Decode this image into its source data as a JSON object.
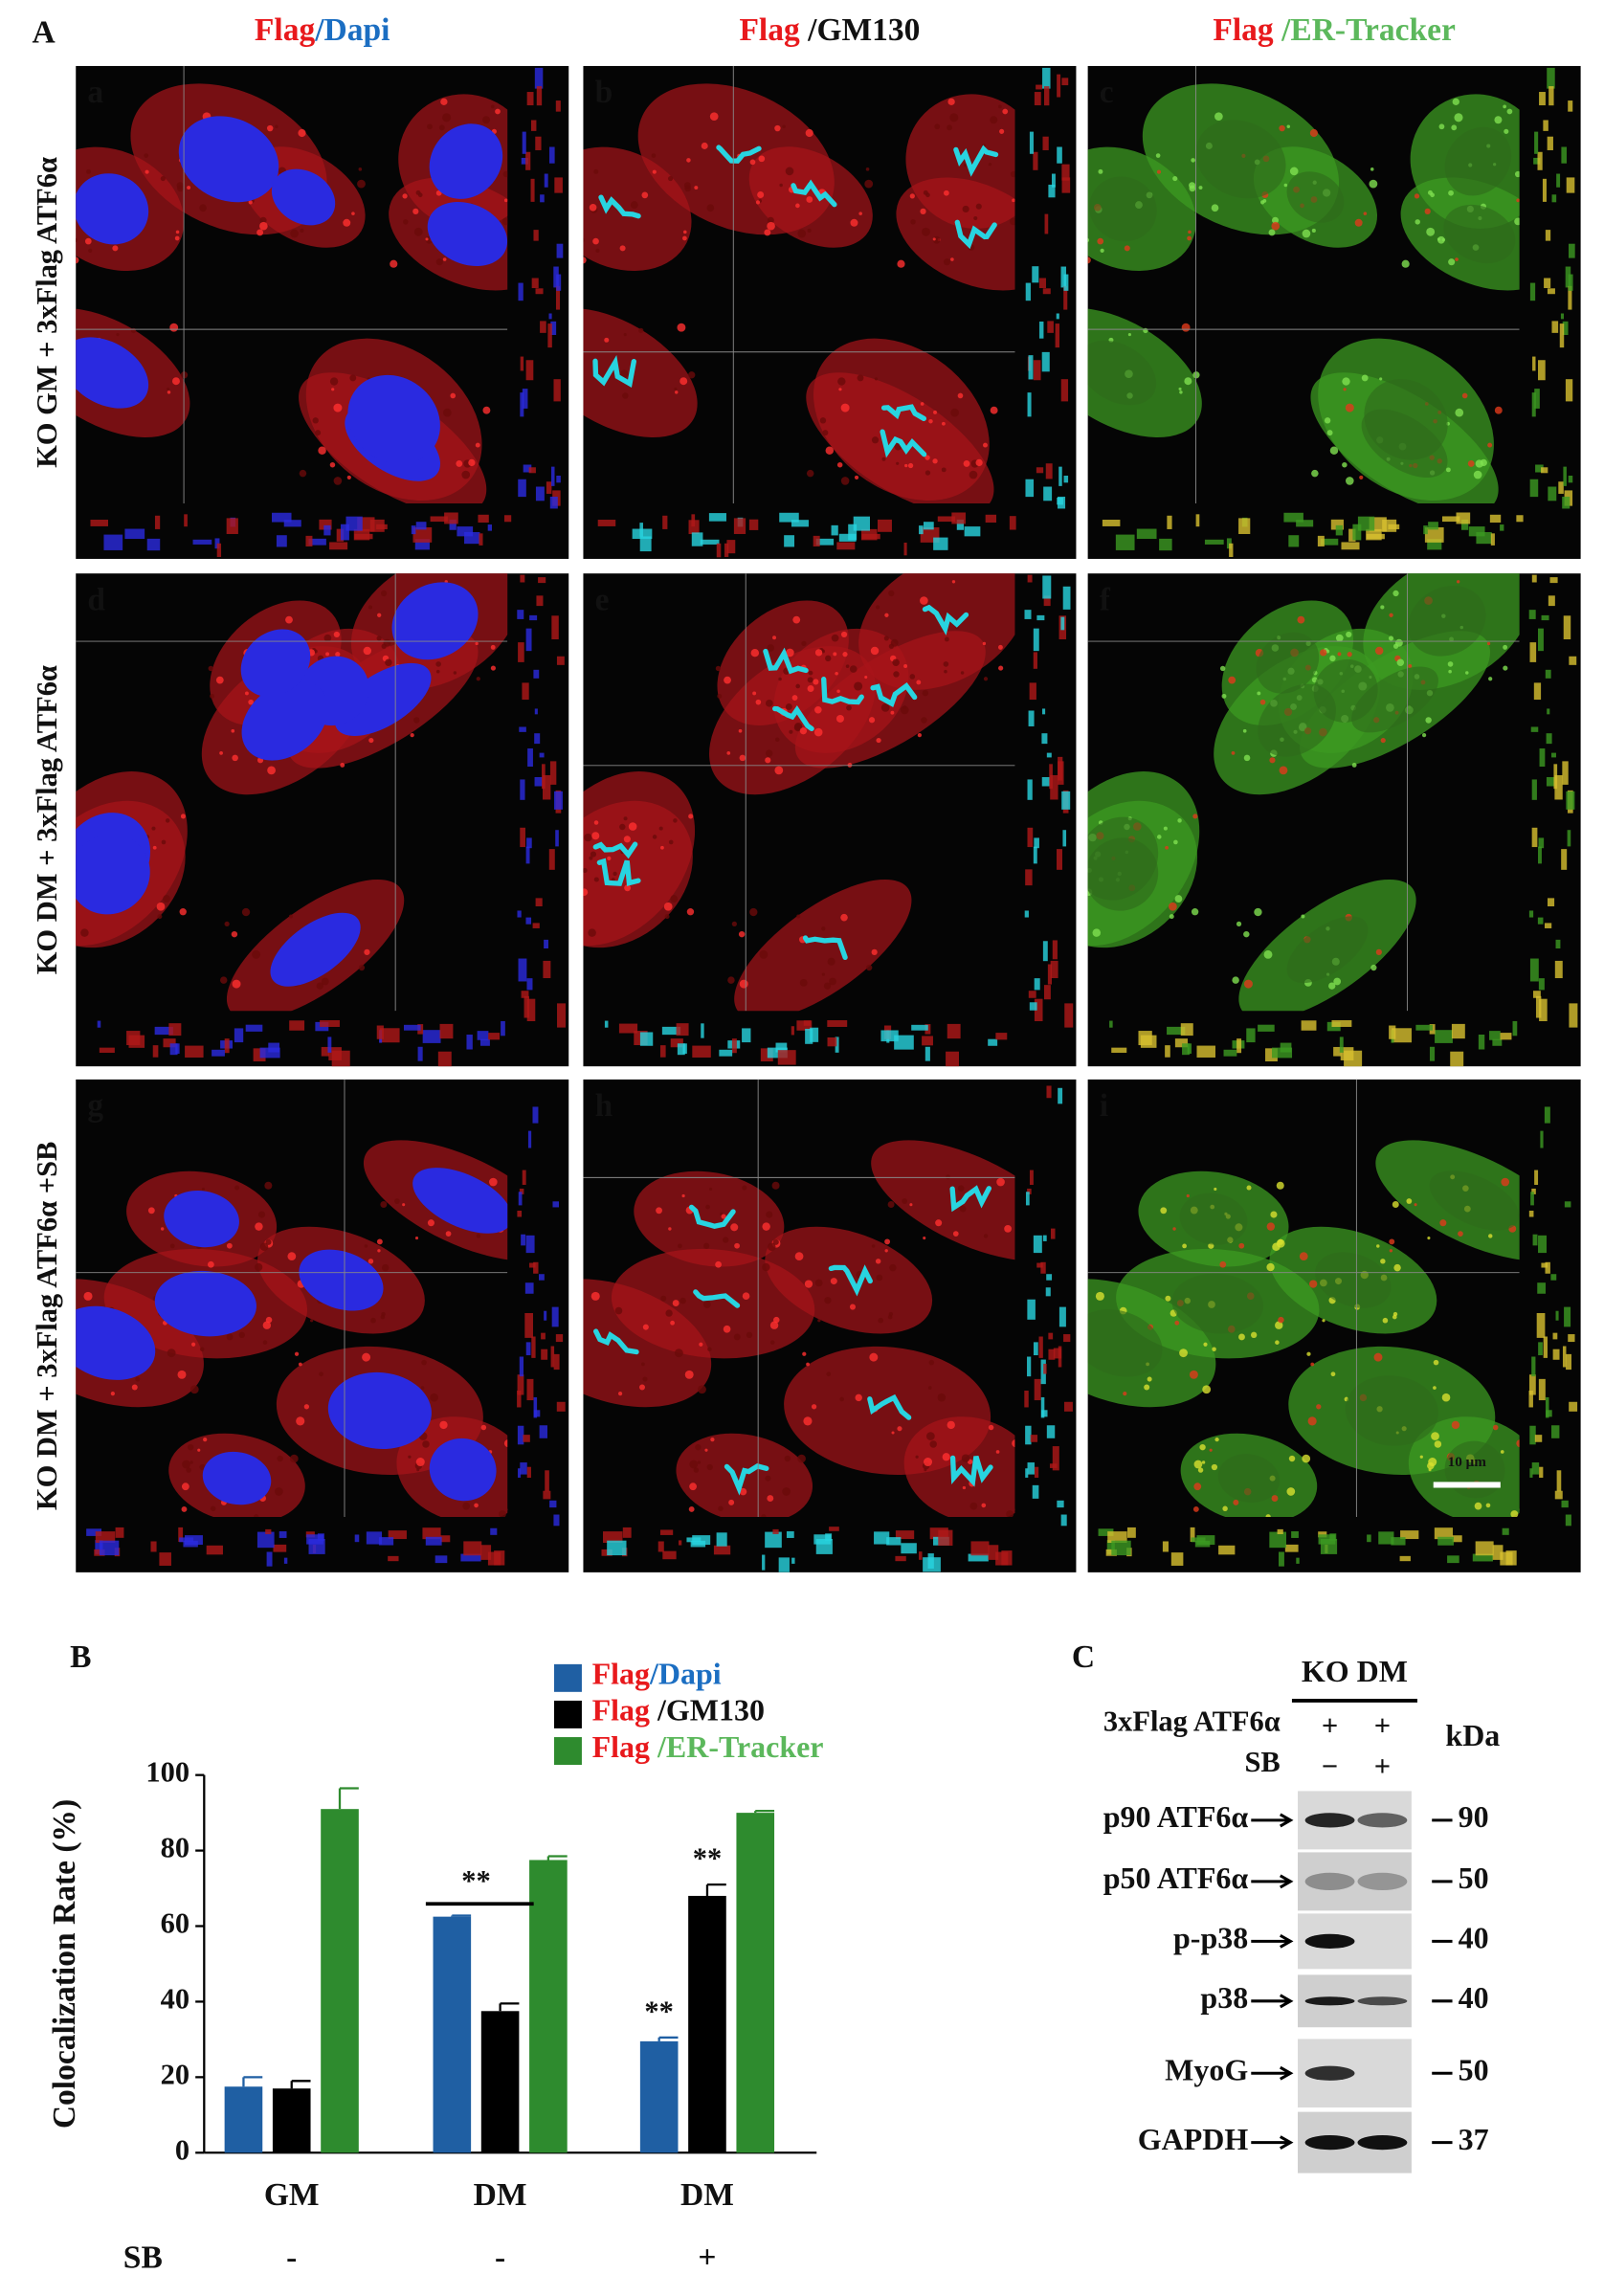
{
  "panel_a": {
    "label": "A",
    "columns": [
      [
        "Flag",
        "/Dapi"
      ],
      [
        "Flag",
        " /GM130"
      ],
      [
        "Flag",
        " /ER-Tracker"
      ]
    ],
    "rows": [
      "KO GM + 3xFlag ATF6α",
      "KO DM + 3xFlag ATF6α",
      "KO DM + 3xFlag ATF6α +SB"
    ],
    "panels": [
      "a",
      "b",
      "c",
      "d",
      "e",
      "f",
      "g",
      "h",
      "i"
    ],
    "scale_bar": "10 μm"
  },
  "chart_data": {
    "type": "bar",
    "label": "B",
    "ylabel": "Colocalization Rate (%)",
    "categories": [
      "GM",
      "DM",
      "DM"
    ],
    "row_label": "SB",
    "row_values": [
      "-",
      "-",
      "+"
    ],
    "series": [
      {
        "name": "Flag/Dapi",
        "color": "#1f5fa3",
        "values": [
          17.5,
          62.5,
          29.5
        ],
        "errors": [
          2.5,
          0.3,
          1
        ]
      },
      {
        "name": "Flag /GM130",
        "color": "#000000",
        "values": [
          17,
          37.5,
          68
        ],
        "errors": [
          2,
          2,
          3
        ]
      },
      {
        "name": "Flag /ER-Tracker",
        "color": "#2e8b2e",
        "values": [
          91,
          77.5,
          90
        ],
        "errors": [
          5.5,
          1,
          0.5
        ]
      }
    ],
    "annotations": [
      "**",
      "**",
      "**"
    ],
    "ylim": [
      0,
      100
    ],
    "yticks": [
      0,
      20,
      40,
      60,
      80,
      100
    ]
  },
  "panel_c": {
    "label": "C",
    "group": "KO DM",
    "unit": "kDa",
    "conditions": [
      {
        "name": "3xFlag ATF6α",
        "lanes": [
          "+",
          "+"
        ]
      },
      {
        "name": "SB",
        "lanes": [
          "−",
          "+"
        ]
      }
    ],
    "blots": [
      {
        "name": "p90 ATF6α",
        "kda": "90"
      },
      {
        "name": "p50 ATF6α",
        "kda": "50"
      },
      {
        "name": "p-p38",
        "kda": "40"
      },
      {
        "name": "p38",
        "kda": "40"
      },
      {
        "name": "MyoG",
        "kda": "50"
      },
      {
        "name": "GAPDH",
        "kda": "37"
      }
    ]
  }
}
